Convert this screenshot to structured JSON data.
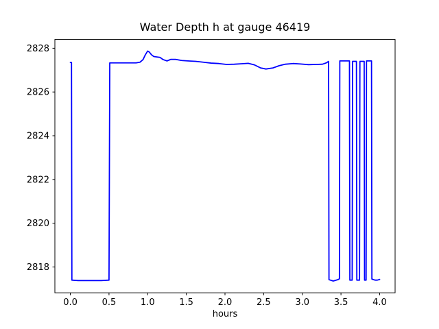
{
  "figure": {
    "background": "#ffffff",
    "text_color": "#000000",
    "axes_color": "#000000"
  },
  "chart_data": {
    "type": "line",
    "title": "Water Depth h at gauge 46419",
    "xlabel": "hours",
    "ylabel": "",
    "grid": false,
    "legend": "none",
    "line_color": "#0000ff",
    "line_width": 1.8,
    "xlim": [
      -0.2,
      4.2
    ],
    "ylim": [
      2816.82,
      2828.4
    ],
    "x_ticks": [
      0.0,
      0.5,
      1.0,
      1.5,
      2.0,
      2.5,
      3.0,
      3.5,
      4.0
    ],
    "x_tick_labels": [
      "0.0",
      "0.5",
      "1.0",
      "1.5",
      "2.0",
      "2.5",
      "3.0",
      "3.5",
      "4.0"
    ],
    "y_ticks": [
      2818,
      2820,
      2822,
      2824,
      2826,
      2828
    ],
    "y_tick_labels": [
      "2818",
      "2820",
      "2822",
      "2824",
      "2826",
      "2828"
    ],
    "series": [
      {
        "name": "water-depth-h",
        "points": [
          [
            0.0,
            2827.35
          ],
          [
            0.015,
            2827.35
          ],
          [
            0.02,
            2817.4
          ],
          [
            0.1,
            2817.38
          ],
          [
            0.25,
            2817.38
          ],
          [
            0.4,
            2817.38
          ],
          [
            0.5,
            2817.4
          ],
          [
            0.51,
            2827.33
          ],
          [
            0.6,
            2827.33
          ],
          [
            0.72,
            2827.33
          ],
          [
            0.85,
            2827.33
          ],
          [
            0.9,
            2827.36
          ],
          [
            0.94,
            2827.48
          ],
          [
            0.97,
            2827.7
          ],
          [
            1.0,
            2827.87
          ],
          [
            1.02,
            2827.83
          ],
          [
            1.05,
            2827.7
          ],
          [
            1.08,
            2827.62
          ],
          [
            1.12,
            2827.6
          ],
          [
            1.16,
            2827.58
          ],
          [
            1.2,
            2827.48
          ],
          [
            1.25,
            2827.42
          ],
          [
            1.3,
            2827.49
          ],
          [
            1.36,
            2827.49
          ],
          [
            1.44,
            2827.44
          ],
          [
            1.52,
            2827.42
          ],
          [
            1.62,
            2827.4
          ],
          [
            1.72,
            2827.36
          ],
          [
            1.82,
            2827.32
          ],
          [
            1.92,
            2827.3
          ],
          [
            2.02,
            2827.26
          ],
          [
            2.12,
            2827.27
          ],
          [
            2.22,
            2827.29
          ],
          [
            2.3,
            2827.31
          ],
          [
            2.38,
            2827.24
          ],
          [
            2.46,
            2827.1
          ],
          [
            2.53,
            2827.05
          ],
          [
            2.62,
            2827.1
          ],
          [
            2.7,
            2827.2
          ],
          [
            2.78,
            2827.27
          ],
          [
            2.88,
            2827.3
          ],
          [
            2.98,
            2827.28
          ],
          [
            3.08,
            2827.25
          ],
          [
            3.18,
            2827.26
          ],
          [
            3.26,
            2827.27
          ],
          [
            3.31,
            2827.33
          ],
          [
            3.34,
            2827.4
          ],
          [
            3.345,
            2817.42
          ],
          [
            3.4,
            2817.36
          ],
          [
            3.46,
            2817.42
          ],
          [
            3.48,
            2817.46
          ],
          [
            3.485,
            2827.42
          ],
          [
            3.55,
            2827.42
          ],
          [
            3.61,
            2827.42
          ],
          [
            3.615,
            2817.4
          ],
          [
            3.645,
            2817.4
          ],
          [
            3.65,
            2827.4
          ],
          [
            3.7,
            2827.4
          ],
          [
            3.705,
            2817.4
          ],
          [
            3.74,
            2817.4
          ],
          [
            3.745,
            2827.4
          ],
          [
            3.8,
            2827.4
          ],
          [
            3.805,
            2817.4
          ],
          [
            3.825,
            2817.4
          ],
          [
            3.83,
            2827.42
          ],
          [
            3.895,
            2827.42
          ],
          [
            3.9,
            2817.45
          ],
          [
            3.94,
            2817.4
          ],
          [
            3.97,
            2817.4
          ],
          [
            4.0,
            2817.43
          ]
        ]
      }
    ]
  }
}
